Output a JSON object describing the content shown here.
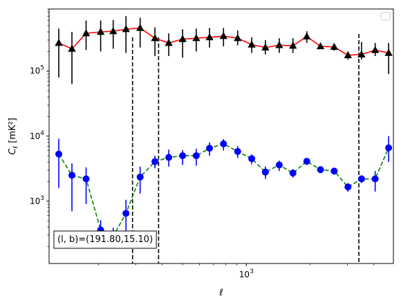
{
  "chart_data": {
    "type": "scatter",
    "xlabel": "ℓ",
    "ylabel": "C",
    "ylabel_subscript": "ℓ",
    "ylabel_unit": " [mK²]",
    "xscale": "log",
    "yscale": "log",
    "xlim": [
      117,
      4950
    ],
    "ylim": [
      110,
      900000
    ],
    "xticks": [
      {
        "value": 1000,
        "base": "10",
        "exp": "3"
      }
    ],
    "yticks": [
      {
        "value": 1000,
        "base": "10",
        "exp": "3"
      },
      {
        "value": 10000,
        "base": "10",
        "exp": "4"
      },
      {
        "value": 100000,
        "base": "10",
        "exp": "5"
      }
    ],
    "grid": false,
    "legend": "top-right",
    "annotation": "(l, b)=(191.80,15.10)",
    "vlines": [
      290,
      385,
      3400
    ],
    "series": [
      {
        "marker": "triangle",
        "marker_color": "#000000",
        "line_color": "#ff0000",
        "line_style": "solid",
        "errorbar_color": "#000000",
        "x": [
          130,
          150,
          175,
          205,
          235,
          270,
          315,
          370,
          430,
          500,
          580,
          670,
          780,
          910,
          1060,
          1230,
          1430,
          1660,
          1930,
          2240,
          2600,
          3020,
          3500,
          4060,
          4700
        ],
        "y": [
          270000,
          220000,
          380000,
          400000,
          410000,
          440000,
          460000,
          320000,
          270000,
          310000,
          320000,
          330000,
          345000,
          320000,
          255000,
          230000,
          250000,
          245000,
          340000,
          240000,
          235000,
          175000,
          180000,
          210000,
          190000
        ],
        "yerr_low": [
          190000,
          157000,
          170000,
          200000,
          190000,
          250000,
          230000,
          150000,
          100000,
          150000,
          120000,
          100000,
          105000,
          70000,
          65000,
          50000,
          60000,
          55000,
          70000,
          20000,
          30000,
          25000,
          30000,
          40000,
          100000
        ],
        "yerr_high": [
          180000,
          180000,
          220000,
          200000,
          200000,
          260000,
          200000,
          150000,
          110000,
          130000,
          130000,
          130000,
          115000,
          100000,
          75000,
          70000,
          70000,
          75000,
          70000,
          20000,
          30000,
          25000,
          100000,
          60000,
          80000
        ]
      },
      {
        "marker": "circle",
        "marker_color": "#0000ff",
        "line_color": "#008000",
        "line_style": "dashed",
        "errorbar_color": "#0000ff",
        "x": [
          130,
          150,
          175,
          205,
          235,
          270,
          315,
          370,
          430,
          500,
          580,
          670,
          780,
          910,
          1060,
          1230,
          1430,
          1660,
          1930,
          2240,
          2600,
          3020,
          3500,
          4060,
          4700
        ],
        "y": [
          5300,
          2500,
          2200,
          360,
          290,
          650,
          2350,
          4050,
          4700,
          5000,
          5000,
          6500,
          7600,
          5800,
          4500,
          2800,
          3600,
          2700,
          4100,
          3050,
          2900,
          1650,
          2200,
          2200,
          6600
        ],
        "yerr_low": [
          3700,
          1800,
          1300,
          150,
          70,
          350,
          1050,
          850,
          1300,
          1400,
          1500,
          1500,
          1600,
          1200,
          800,
          600,
          700,
          400,
          500,
          350,
          350,
          250,
          300,
          800,
          2600
        ],
        "yerr_high": [
          3800,
          1300,
          1100,
          150,
          100,
          400,
          1050,
          950,
          1500,
          1100,
          1400,
          1500,
          1400,
          1200,
          700,
          600,
          600,
          400,
          500,
          350,
          350,
          250,
          300,
          700,
          3400
        ]
      }
    ]
  }
}
